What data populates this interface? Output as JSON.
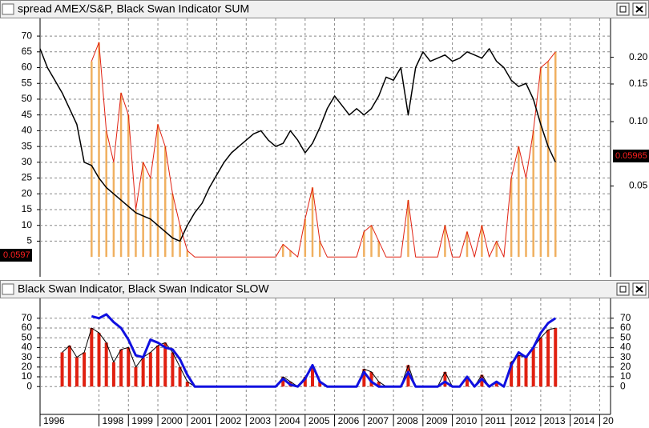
{
  "chart_data": [
    {
      "type": "combo",
      "title": "spread AMEX/S&P, Black Swan Indicator SUM",
      "x": [
        1996,
        1996.25,
        1996.5,
        1996.75,
        1997,
        1997.25,
        1997.5,
        1997.75,
        1998,
        1998.25,
        1998.5,
        1998.75,
        1999,
        1999.25,
        1999.5,
        1999.75,
        2000,
        2000.25,
        2000.5,
        2000.75,
        2001,
        2001.25,
        2001.5,
        2001.75,
        2002,
        2002.25,
        2002.5,
        2002.75,
        2003,
        2003.25,
        2003.5,
        2003.75,
        2004,
        2004.25,
        2004.5,
        2004.75,
        2005,
        2005.25,
        2005.5,
        2005.75,
        2006,
        2006.25,
        2006.5,
        2006.75,
        2007,
        2007.25,
        2007.5,
        2007.75,
        2008,
        2008.25,
        2008.5,
        2008.75,
        2009,
        2009.25,
        2009.5,
        2009.75,
        2010,
        2010.25,
        2010.5,
        2010.75,
        2011,
        2011.25,
        2011.5,
        2011.75,
        2012,
        2012.25,
        2012.5,
        2012.75,
        2013,
        2013.25,
        2013.5
      ],
      "series": [
        {
          "kind": "bars+line",
          "color": "#f0b060",
          "line_color": "#e02010",
          "values": [
            null,
            null,
            null,
            null,
            null,
            null,
            null,
            62,
            68,
            40,
            30,
            52,
            45,
            15,
            30,
            25,
            42,
            35,
            20,
            10,
            2,
            0,
            0,
            0,
            0,
            0,
            0,
            0,
            0,
            0,
            0,
            0,
            0,
            4,
            2,
            0,
            12,
            22,
            5,
            0,
            0,
            0,
            0,
            0,
            8,
            10,
            5,
            0,
            0,
            0,
            18,
            0,
            0,
            0,
            0,
            10,
            0,
            0,
            8,
            0,
            10,
            0,
            5,
            0,
            25,
            35,
            25,
            40,
            60,
            62,
            65
          ]
        },
        {
          "kind": "line",
          "color": "#000000",
          "values": [
            66,
            60,
            56,
            52,
            47,
            42,
            30,
            29,
            25,
            22,
            20,
            18,
            16,
            14,
            13,
            12,
            10,
            8,
            6,
            5,
            10,
            14,
            17,
            22,
            26,
            30,
            33,
            35,
            37,
            39,
            40,
            37,
            35,
            36,
            40,
            37,
            33,
            36,
            41,
            47,
            51,
            48,
            45,
            47,
            45,
            47,
            51,
            57,
            56,
            60,
            45,
            60,
            65,
            62,
            63,
            64,
            62,
            63,
            65,
            64,
            63,
            66,
            62,
            60,
            56,
            54,
            55,
            50,
            42,
            35,
            30
          ]
        }
      ],
      "ylim": [
        -6.3,
        75.6
      ],
      "yticks": [
        5,
        10,
        15,
        20,
        25,
        30,
        35,
        40,
        45,
        50,
        55,
        60,
        65,
        70
      ],
      "y2scale": "log",
      "y2lim": [
        0.0188,
        0.304
      ],
      "y2ticks": [
        {
          "value": 0.05,
          "label": "0.05"
        },
        {
          "value": 0.1,
          "label": "0.10"
        },
        0.15,
        {
          "value": 0.2,
          "label": "0.20"
        }
      ],
      "left_badge": "0.0597",
      "right_badge": "0.05965",
      "grid": true
    },
    {
      "type": "combo",
      "title": "Black Swan Indicator, Black Swan Indicator SLOW",
      "x": [
        1996,
        1996.25,
        1996.5,
        1996.75,
        1997,
        1997.25,
        1997.5,
        1997.75,
        1998,
        1998.25,
        1998.5,
        1998.75,
        1999,
        1999.25,
        1999.5,
        1999.75,
        2000,
        2000.25,
        2000.5,
        2000.75,
        2001,
        2001.25,
        2001.5,
        2001.75,
        2002,
        2002.25,
        2002.5,
        2002.75,
        2003,
        2003.25,
        2003.5,
        2003.75,
        2004,
        2004.25,
        2004.5,
        2004.75,
        2005,
        2005.25,
        2005.5,
        2005.75,
        2006,
        2006.25,
        2006.5,
        2006.75,
        2007,
        2007.25,
        2007.5,
        2007.75,
        2008,
        2008.25,
        2008.5,
        2008.75,
        2009,
        2009.25,
        2009.5,
        2009.75,
        2010,
        2010.25,
        2010.5,
        2010.75,
        2011,
        2011.25,
        2011.5,
        2011.75,
        2012,
        2012.25,
        2012.5,
        2012.75,
        2013,
        2013.25,
        2013.5
      ],
      "series": [
        {
          "kind": "bars+line",
          "color": "#e02010",
          "line_color": "#000000",
          "values": [
            null,
            null,
            null,
            35,
            42,
            30,
            35,
            60,
            55,
            45,
            25,
            38,
            40,
            20,
            30,
            35,
            42,
            45,
            35,
            20,
            5,
            0,
            0,
            0,
            0,
            0,
            0,
            0,
            0,
            0,
            0,
            0,
            0,
            10,
            5,
            0,
            10,
            20,
            5,
            0,
            0,
            0,
            0,
            0,
            18,
            15,
            5,
            0,
            0,
            0,
            22,
            0,
            0,
            0,
            0,
            15,
            0,
            0,
            10,
            0,
            12,
            0,
            5,
            0,
            25,
            32,
            30,
            40,
            50,
            58,
            60
          ]
        },
        {
          "kind": "thickline",
          "color": "#1010e0",
          "values": [
            null,
            null,
            null,
            null,
            null,
            null,
            null,
            72,
            70,
            74,
            66,
            60,
            48,
            32,
            30,
            48,
            45,
            40,
            38,
            28,
            12,
            0,
            0,
            0,
            0,
            0,
            0,
            0,
            0,
            0,
            0,
            0,
            0,
            8,
            2,
            0,
            8,
            22,
            5,
            0,
            0,
            0,
            0,
            0,
            15,
            5,
            0,
            0,
            0,
            0,
            15,
            0,
            0,
            0,
            0,
            5,
            0,
            0,
            10,
            0,
            8,
            0,
            5,
            0,
            22,
            35,
            30,
            40,
            55,
            65,
            70
          ]
        }
      ],
      "ylim": [
        -28.5,
        90.3
      ],
      "yticks": [
        0,
        10,
        20,
        30,
        40,
        50,
        60,
        70
      ],
      "xlim": [
        1996,
        2015.37
      ],
      "xticks": [
        1996,
        1998,
        1999,
        2000,
        2001,
        2002,
        2003,
        2004,
        2005,
        2006,
        2007,
        2008,
        2009,
        2010,
        2011,
        2012,
        2013,
        2014,
        {
          "value": 2015,
          "label": "20"
        }
      ],
      "grid": true
    }
  ]
}
